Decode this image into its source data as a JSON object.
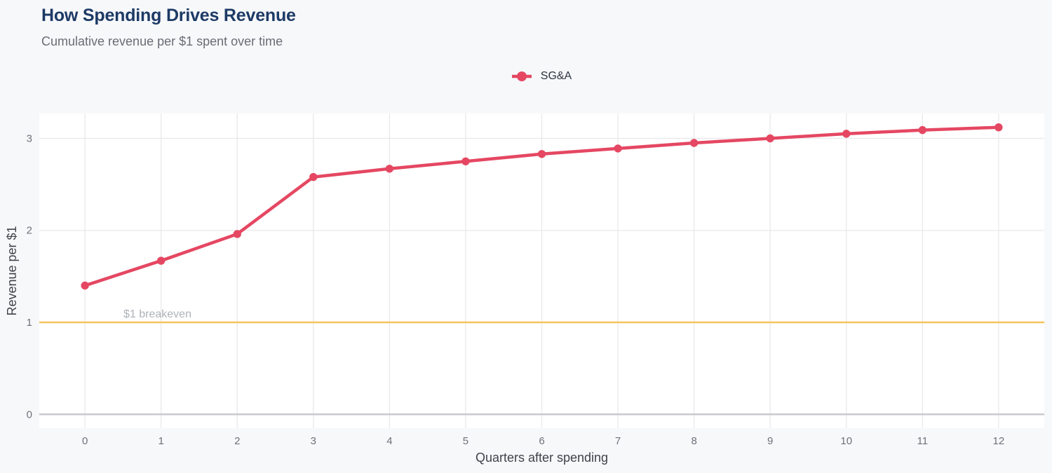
{
  "page": {
    "title": "How Spending Drives Revenue",
    "subtitle": "Cumulative revenue per $1 spent over time"
  },
  "legend": {
    "items": [
      {
        "label": "SG&A",
        "color": "#e54762"
      }
    ]
  },
  "chart_data": {
    "type": "line",
    "title": "How Spending Drives Revenue",
    "subtitle": "Cumulative revenue per $1 spent over time",
    "xlabel": "Quarters after spending",
    "ylabel": "Revenue per $1",
    "x": [
      0,
      1,
      2,
      3,
      4,
      5,
      6,
      7,
      8,
      9,
      10,
      11,
      12
    ],
    "series": [
      {
        "name": "SG&A",
        "color": "#e54762",
        "values": [
          1.4,
          1.67,
          1.96,
          2.58,
          2.67,
          2.75,
          2.83,
          2.89,
          2.95,
          3.0,
          3.05,
          3.09,
          3.12
        ]
      }
    ],
    "yticks": [
      0,
      1,
      2,
      3
    ],
    "xlim": [
      -0.6,
      12.6
    ],
    "ylim": [
      -0.15,
      3.27
    ],
    "grid": true,
    "legend_position": "top-center",
    "reference_line": {
      "value": 1,
      "label": "$1 breakeven",
      "color": "#f5c65c",
      "label_color": "#aeb2b8"
    }
  },
  "colors": {
    "page_background": "#f7f8fa",
    "plot_background": "#ffffff",
    "grid_line": "#e9e9ec",
    "zero_line": "#c9c9ce",
    "tick_label": "#6d7178",
    "axis_title": "#3e434a",
    "title": "#1d3a66",
    "subtitle": "#686d74"
  }
}
